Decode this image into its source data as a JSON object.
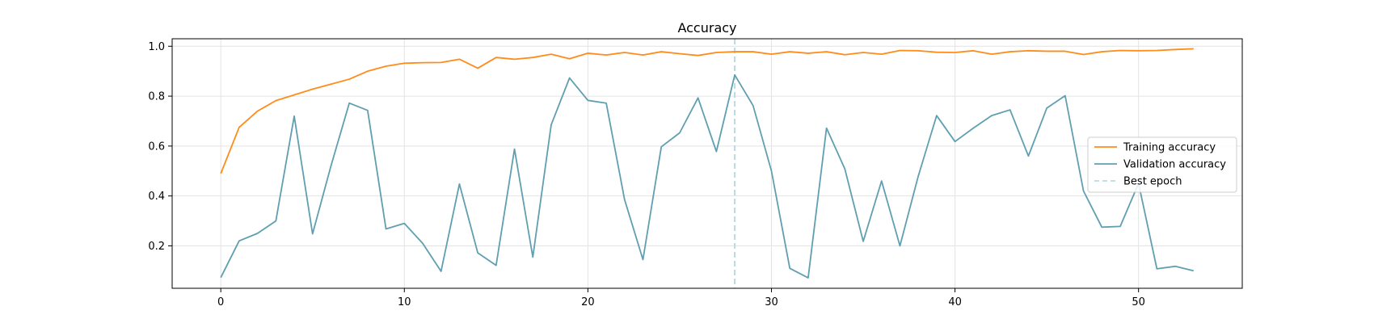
{
  "chart_data": {
    "type": "line",
    "title": "Accuracy",
    "xlabel": "",
    "ylabel": "",
    "xlim": [
      -2.65,
      55.65
    ],
    "ylim": [
      0.03,
      1.03
    ],
    "xticks": [
      0,
      10,
      20,
      30,
      40,
      50
    ],
    "yticks": [
      0.2,
      0.4,
      0.6,
      0.8,
      1.0
    ],
    "grid": true,
    "legend_position": "center-right",
    "x": [
      0,
      1,
      2,
      3,
      4,
      5,
      6,
      7,
      8,
      9,
      10,
      11,
      12,
      13,
      14,
      15,
      16,
      17,
      18,
      19,
      20,
      21,
      22,
      23,
      24,
      25,
      26,
      27,
      28,
      29,
      30,
      31,
      32,
      33,
      34,
      35,
      36,
      37,
      38,
      39,
      40,
      41,
      42,
      43,
      44,
      45,
      46,
      47,
      48,
      49,
      50,
      51,
      52,
      53
    ],
    "series": [
      {
        "name": "Training accuracy",
        "color": "#ff8c1a",
        "style": "solid",
        "values": [
          0.49,
          0.675,
          0.74,
          0.782,
          0.805,
          0.828,
          0.848,
          0.868,
          0.9,
          0.92,
          0.932,
          0.934,
          0.935,
          0.948,
          0.912,
          0.955,
          0.948,
          0.955,
          0.968,
          0.95,
          0.972,
          0.965,
          0.975,
          0.965,
          0.978,
          0.97,
          0.963,
          0.975,
          0.978,
          0.978,
          0.968,
          0.978,
          0.972,
          0.978,
          0.966,
          0.975,
          0.968,
          0.983,
          0.982,
          0.976,
          0.975,
          0.982,
          0.968,
          0.978,
          0.982,
          0.98,
          0.98,
          0.967,
          0.978,
          0.983,
          0.982,
          0.983,
          0.987,
          0.99
        ]
      },
      {
        "name": "Validation accuracy",
        "color": "#5f9fb0",
        "style": "solid",
        "values": [
          0.073,
          0.22,
          0.25,
          0.3,
          0.72,
          0.248,
          0.52,
          0.772,
          0.743,
          0.268,
          0.29,
          0.21,
          0.098,
          0.448,
          0.172,
          0.122,
          0.588,
          0.155,
          0.685,
          0.873,
          0.783,
          0.772,
          0.385,
          0.145,
          0.597,
          0.653,
          0.793,
          0.578,
          0.885,
          0.762,
          0.5,
          0.11,
          0.072,
          0.672,
          0.508,
          0.218,
          0.46,
          0.2,
          0.48,
          0.722,
          0.618,
          0.672,
          0.722,
          0.745,
          0.56,
          0.752,
          0.802,
          0.42,
          0.275,
          0.278,
          0.45,
          0.108,
          0.118,
          0.1
        ]
      }
    ],
    "vline": {
      "name": "Best epoch",
      "x": 28,
      "color": "#b9dbe0",
      "style": "dashed"
    }
  }
}
